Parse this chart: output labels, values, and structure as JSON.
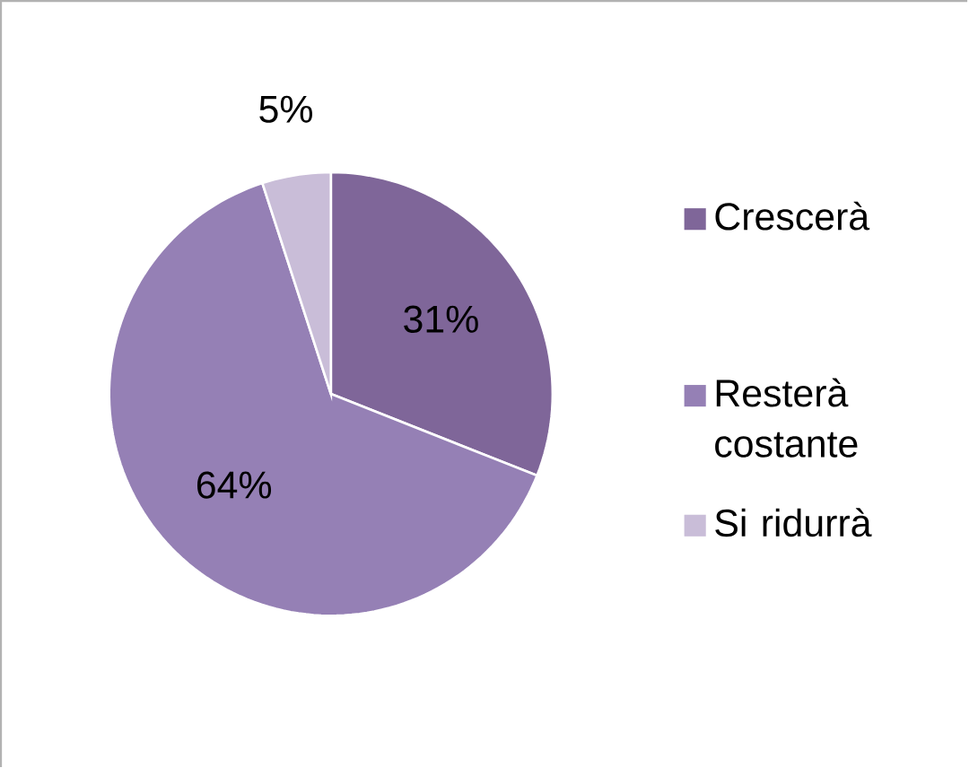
{
  "chart_data": {
    "type": "pie",
    "categories": [
      "Crescerà",
      "Resterà costante",
      "Si ridurrà"
    ],
    "values": [
      31,
      64,
      5
    ],
    "colors": [
      "#7f6699",
      "#9580b5",
      "#c9bdd8"
    ],
    "value_labels": [
      "31%",
      "64%",
      "5%"
    ],
    "legend": "right"
  }
}
